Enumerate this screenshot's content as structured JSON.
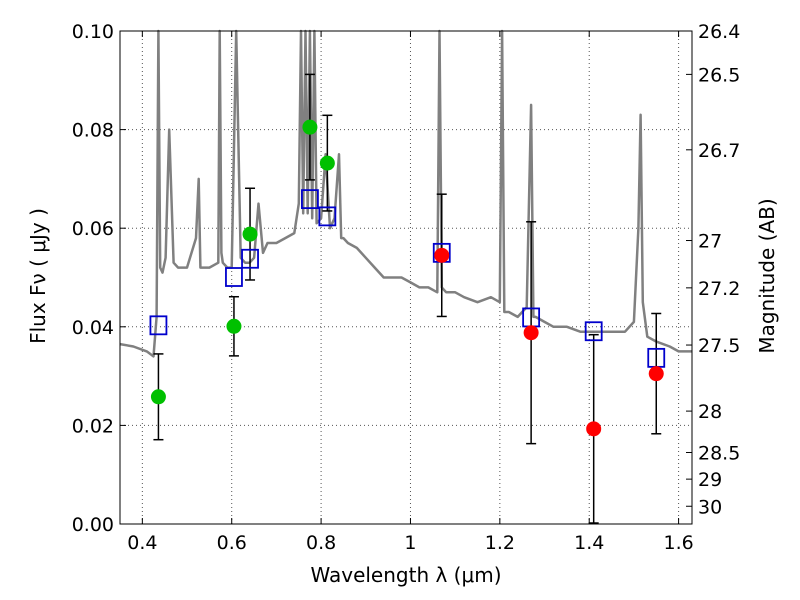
{
  "chart_data": {
    "type": "scatter",
    "title": "",
    "xlabel": "Wavelength  λ (μm)",
    "ylabel": "Flux  Fν  ( μJy )",
    "y2label": "Magnitude (AB)",
    "xlim": [
      0.35,
      1.63
    ],
    "ylim": [
      0.0,
      0.1
    ],
    "grid": true,
    "x_ticks": [
      0.4,
      0.6,
      0.8,
      1.0,
      1.2,
      1.4,
      1.6
    ],
    "x_tick_labels": [
      "0.4",
      "0.6",
      "0.8",
      "1",
      "1.2",
      "1.4",
      "1.6"
    ],
    "y_ticks": [
      0.0,
      0.02,
      0.04,
      0.06,
      0.08,
      0.1
    ],
    "y_tick_labels": [
      "0.00",
      "0.02",
      "0.04",
      "0.06",
      "0.08",
      "0.10"
    ],
    "y2_ticks": [
      {
        "label": "26.4",
        "flux": 0.1
      },
      {
        "label": "26.5",
        "flux": 0.0912
      },
      {
        "label": "26.7",
        "flux": 0.0759
      },
      {
        "label": "27",
        "flux": 0.0575
      },
      {
        "label": "27.2",
        "flux": 0.0479
      },
      {
        "label": "27.5",
        "flux": 0.0363
      },
      {
        "label": "28",
        "flux": 0.0229
      },
      {
        "label": "28.5",
        "flux": 0.0145
      },
      {
        "label": "29",
        "flux": 0.0091
      },
      {
        "label": "30",
        "flux": 0.0036
      }
    ],
    "colors": {
      "sed": "#808080",
      "green_points": "#00c000",
      "red_points": "#ff0000",
      "model_squares": "#0000cc",
      "error_bars": "#000000",
      "grid": "#555555"
    },
    "sed_curve": {
      "x": [
        0.35,
        0.38,
        0.41,
        0.425,
        0.432,
        0.436,
        0.44,
        0.445,
        0.452,
        0.46,
        0.47,
        0.48,
        0.5,
        0.52,
        0.526,
        0.53,
        0.55,
        0.57,
        0.573,
        0.577,
        0.58,
        0.59,
        0.6,
        0.61,
        0.62,
        0.63,
        0.64,
        0.65,
        0.66,
        0.67,
        0.68,
        0.7,
        0.72,
        0.74,
        0.75,
        0.755,
        0.76,
        0.765,
        0.77,
        0.775,
        0.78,
        0.785,
        0.79,
        0.8,
        0.81,
        0.82,
        0.83,
        0.84,
        0.845,
        0.85,
        0.86,
        0.88,
        0.9,
        0.92,
        0.94,
        0.96,
        0.98,
        1.0,
        1.02,
        1.04,
        1.06,
        1.065,
        1.07,
        1.08,
        1.1,
        1.12,
        1.15,
        1.18,
        1.2,
        1.205,
        1.21,
        1.22,
        1.24,
        1.26,
        1.27,
        1.275,
        1.28,
        1.3,
        1.32,
        1.35,
        1.38,
        1.4,
        1.42,
        1.45,
        1.48,
        1.5,
        1.51,
        1.515,
        1.52,
        1.53,
        1.55,
        1.58,
        1.6,
        1.63
      ],
      "y": [
        0.0365,
        0.036,
        0.035,
        0.034,
        0.042,
        0.1,
        0.052,
        0.051,
        0.054,
        0.08,
        0.053,
        0.052,
        0.052,
        0.058,
        0.07,
        0.052,
        0.052,
        0.053,
        0.1,
        0.055,
        0.053,
        0.052,
        0.052,
        0.1,
        0.054,
        0.053,
        0.053,
        0.054,
        0.065,
        0.055,
        0.057,
        0.057,
        0.058,
        0.059,
        0.065,
        0.1,
        0.063,
        0.1,
        0.063,
        0.1,
        0.062,
        0.1,
        0.061,
        0.062,
        0.075,
        0.06,
        0.062,
        0.075,
        0.058,
        0.058,
        0.057,
        0.056,
        0.054,
        0.052,
        0.05,
        0.05,
        0.05,
        0.049,
        0.048,
        0.048,
        0.047,
        0.1,
        0.048,
        0.047,
        0.047,
        0.046,
        0.045,
        0.046,
        0.045,
        0.1,
        0.043,
        0.043,
        0.042,
        0.044,
        0.085,
        0.042,
        0.042,
        0.041,
        0.04,
        0.04,
        0.039,
        0.039,
        0.039,
        0.039,
        0.039,
        0.041,
        0.06,
        0.083,
        0.045,
        0.038,
        0.037,
        0.036,
        0.035,
        0.035
      ]
    },
    "series": [
      {
        "marker": "circle-green",
        "x": [
          0.436,
          0.605,
          0.641,
          0.775,
          0.814
        ],
        "y": [
          0.0258,
          0.0401,
          0.0588,
          0.0805,
          0.0732
        ],
        "err": [
          0.0,
          0.006,
          0.0093,
          0.0107,
          0.0097
        ]
      },
      {
        "marker": "circle-red",
        "x": [
          1.07,
          1.27,
          1.41,
          1.55
        ],
        "y": [
          0.0545,
          0.0388,
          0.0193,
          0.0305
        ],
        "err": [
          0.0124,
          0.0225,
          0.0191,
          0.0122
        ]
      },
      {
        "marker": "square-blue",
        "x": [
          0.436,
          0.605,
          0.641,
          0.775,
          0.814,
          1.07,
          1.27,
          1.41,
          1.55
        ],
        "y": [
          0.0403,
          0.0501,
          0.0538,
          0.0659,
          0.0624,
          0.055,
          0.0419,
          0.0391,
          0.0337
        ]
      }
    ],
    "error_bars_extra": [
      {
        "x": 0.436,
        "low": 0.0171,
        "high": 0.0345
      }
    ]
  }
}
